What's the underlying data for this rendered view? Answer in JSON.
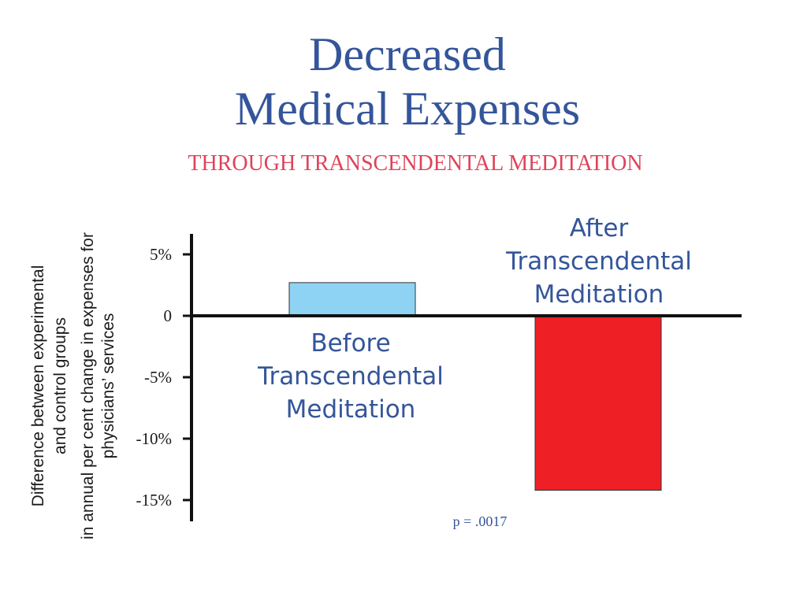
{
  "colors": {
    "title": "#34559a",
    "subtitle": "#e0435a",
    "axis": "#111111",
    "bar_before": "#8fd3f4",
    "bar_after": "#ee2025",
    "bar_label": "#34559a",
    "pvalue": "#34559a"
  },
  "chart_data": {
    "type": "bar",
    "title": [
      "Decreased",
      "Medical Expenses"
    ],
    "subtitle": "THROUGH TRANSCENDENTAL MEDITATION",
    "ylabel": [
      "Difference between experimental",
      "and control groups",
      "in annual per cent change in expenses for",
      "physicians’ services"
    ],
    "ylim": [
      -16.5,
      6.5
    ],
    "yticks": [
      {
        "value": 5,
        "label": "5%"
      },
      {
        "value": 0,
        "label": "0"
      },
      {
        "value": -5,
        "label": "-5%"
      },
      {
        "value": -10,
        "label": "-10%"
      },
      {
        "value": -15,
        "label": "-15%"
      }
    ],
    "bars": [
      {
        "label": [
          "Before",
          "Transcendental",
          "Meditation"
        ],
        "value": 2.7,
        "color_key": "bar_before"
      },
      {
        "label": [
          "After",
          "Transcendental",
          "Meditation"
        ],
        "value": -14.2,
        "color_key": "bar_after"
      }
    ],
    "annotation": "p = .0017",
    "grid": false,
    "legend": "none"
  }
}
